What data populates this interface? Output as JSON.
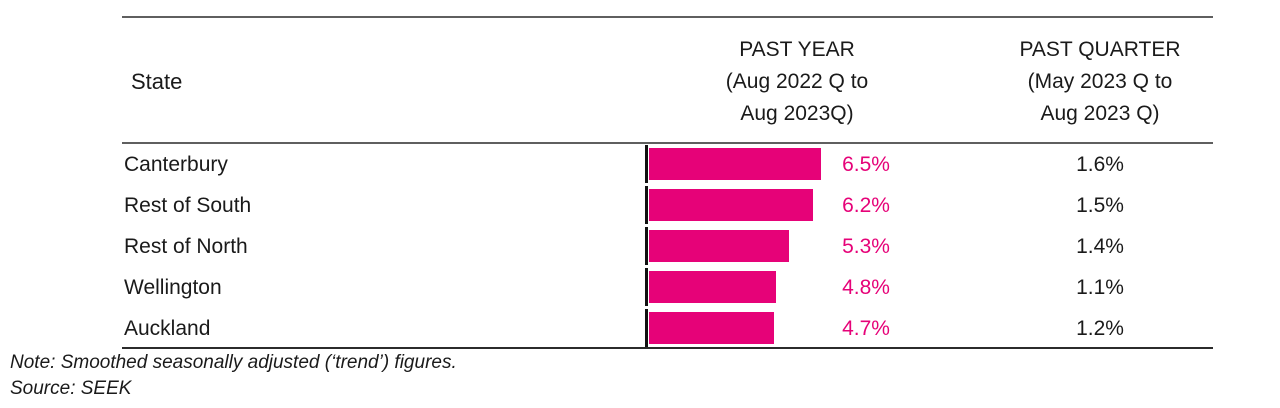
{
  "table": {
    "columns": {
      "state": "State",
      "past_year": "PAST YEAR\n(Aug 2022 Q to\nAug 2023Q)",
      "past_quarter": "PAST QUARTER\n(May 2023 Q to\nAug 2023 Q)"
    },
    "rows": [
      {
        "state": "Canterbury",
        "past_year": "6.5%",
        "past_quarter": "1.6%"
      },
      {
        "state": "Rest of South",
        "past_year": "6.2%",
        "past_quarter": "1.5%"
      },
      {
        "state": "Rest of North",
        "past_year": "5.3%",
        "past_quarter": "1.4%"
      },
      {
        "state": "Wellington",
        "past_year": "4.8%",
        "past_quarter": "1.1%"
      },
      {
        "state": "Auckland",
        "past_year": "4.7%",
        "past_quarter": "1.2%"
      }
    ]
  },
  "notes": {
    "note": "Note: Smoothed seasonally adjusted (‘trend’) figures.",
    "source": "Source: SEEK"
  },
  "colors": {
    "accent": "#E60278",
    "text": "#1a1a1a",
    "grid": "#5f5f5f",
    "bottomline": "#2b2b2b",
    "tick": "#111111"
  },
  "chart_data": {
    "type": "bar",
    "orientation": "horizontal",
    "title": "",
    "categories": [
      "Canterbury",
      "Rest of South",
      "Rest of North",
      "Wellington",
      "Auckland"
    ],
    "series": [
      {
        "name": "PAST YEAR (Aug 2022 Q to Aug 2023Q)",
        "values": [
          6.5,
          6.2,
          5.3,
          4.8,
          4.7
        ],
        "unit": "%",
        "labels": [
          "6.5%",
          "6.2%",
          "5.3%",
          "4.8%",
          "4.7%"
        ],
        "rendered_as": "bars-with-labels"
      },
      {
        "name": "PAST QUARTER (May 2023 Q to Aug 2023 Q)",
        "values": [
          1.6,
          1.5,
          1.4,
          1.1,
          1.2
        ],
        "unit": "%",
        "labels": [
          "1.6%",
          "1.5%",
          "1.4%",
          "1.1%",
          "1.2%"
        ],
        "rendered_as": "labels-only"
      }
    ],
    "xlim": [
      0,
      6.9
    ],
    "grid": false,
    "legend_position": "column-headers",
    "annotations": [
      "Note: Smoothed seasonally adjusted (‘trend’) figures.",
      "Source: SEEK"
    ]
  }
}
